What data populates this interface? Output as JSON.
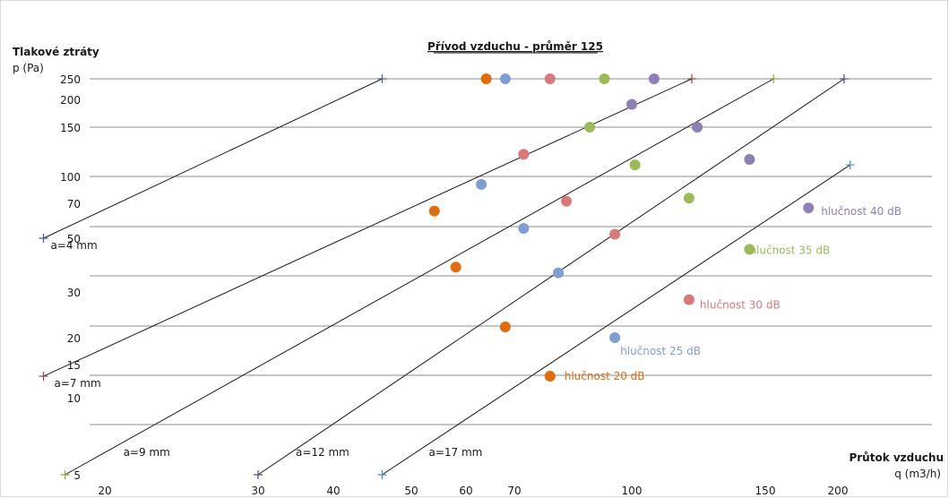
{
  "chart_data": {
    "type": "scatter",
    "title": "Přívod vzduchu - průměr 125",
    "ylabel_title": "Tlakové ztráty",
    "ylabel_unit": "p (Pa)",
    "xlabel_title": "Průtok vzduchu",
    "xlabel_unit": "q (m3/h)",
    "y_ticks": [
      "250",
      "200",
      "150",
      "100",
      "70",
      "50",
      "30",
      "20",
      "15",
      "10",
      "5"
    ],
    "x_ticks": [
      "20",
      "30",
      "40",
      "50",
      "60",
      "70",
      "100",
      "150",
      "200"
    ],
    "grid": "horizontal",
    "lines": [
      {
        "label": "a=4 mm",
        "start": {
          "x": 17,
          "y": 50
        },
        "end": {
          "x": 46,
          "y": 250
        },
        "marker_color": "#3f5f9f"
      },
      {
        "label": "a=7 mm",
        "start": {
          "x": 17,
          "y": 13
        },
        "end": {
          "x": 120,
          "y": 250
        },
        "marker_color": "#9e3a3a"
      },
      {
        "label": "a=9 mm",
        "start": {
          "x": 18,
          "y": 5
        },
        "end": {
          "x": 155,
          "y": 250
        },
        "marker_color": "#8aa83a"
      },
      {
        "label": "a=12 mm",
        "start": {
          "x": 30,
          "y": 5
        },
        "end": {
          "x": 205,
          "y": 250
        },
        "marker_color": "#5a4a8a"
      },
      {
        "label": "a=17 mm",
        "start": {
          "x": 46,
          "y": 5
        },
        "end": {
          "x": 210,
          "y": 110
        },
        "marker_color": "#3f8fcf"
      }
    ],
    "series": [
      {
        "name": "hlučnost 20 dB",
        "color": "#e36c0a",
        "points": [
          {
            "x": 64,
            "y": 250
          },
          {
            "x": 54,
            "y": 65
          },
          {
            "x": 58,
            "y": 38
          },
          {
            "x": 68,
            "y": 22
          },
          {
            "x": 78,
            "y": 13
          }
        ]
      },
      {
        "name": "hlučnost 25 dB",
        "color": "#7f9fd4",
        "points": [
          {
            "x": 68,
            "y": 250
          },
          {
            "x": 63,
            "y": 90
          },
          {
            "x": 72,
            "y": 55
          },
          {
            "x": 80,
            "y": 36
          },
          {
            "x": 95,
            "y": 20
          }
        ]
      },
      {
        "name": "hlučnost 30 dB",
        "color": "#d9797a",
        "points": [
          {
            "x": 78,
            "y": 250
          },
          {
            "x": 72,
            "y": 120
          },
          {
            "x": 82,
            "y": 72
          },
          {
            "x": 95,
            "y": 52
          },
          {
            "x": 119,
            "y": 28
          }
        ]
      },
      {
        "name": "hlučnost 35 dB",
        "color": "#9bbb59",
        "points": [
          {
            "x": 92,
            "y": 250
          },
          {
            "x": 88,
            "y": 150
          },
          {
            "x": 101,
            "y": 110
          },
          {
            "x": 119,
            "y": 75
          },
          {
            "x": 143,
            "y": 45
          }
        ]
      },
      {
        "name": "hlučnost 40 dB",
        "color": "#8f7fb8",
        "points": [
          {
            "x": 107,
            "y": 250
          },
          {
            "x": 100,
            "y": 190
          },
          {
            "x": 122,
            "y": 150
          },
          {
            "x": 143,
            "y": 115
          },
          {
            "x": 178,
            "y": 67
          }
        ]
      }
    ]
  }
}
